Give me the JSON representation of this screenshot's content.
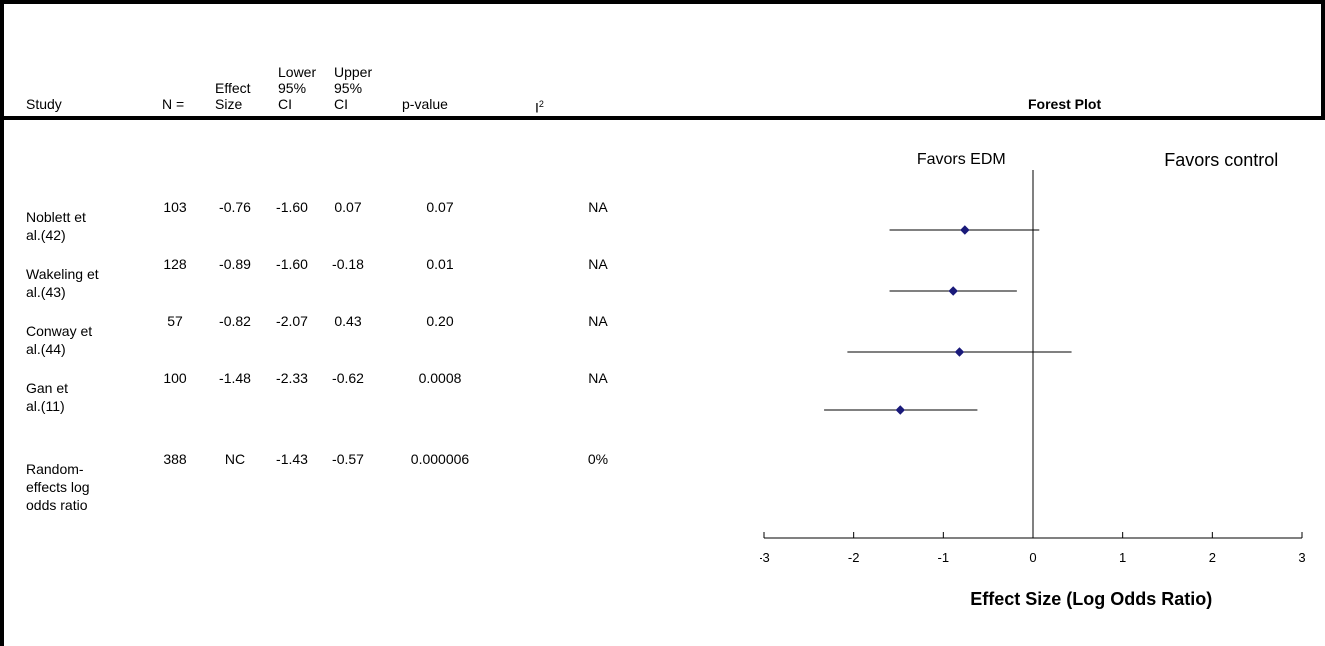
{
  "table": {
    "headers": {
      "study": "Study",
      "n": "N =",
      "effect_size": [
        "Effect",
        "Size"
      ],
      "lower_ci": [
        "Lower",
        "95%",
        "CI"
      ],
      "upper_ci": [
        "Upper",
        "95%",
        "CI"
      ],
      "p_value": "p-value",
      "i2": "I",
      "i2_sup": "2",
      "forest_plot": "Forest Plot"
    },
    "rows": [
      {
        "study": [
          "Noblett et",
          "al.(42)"
        ],
        "n": "103",
        "effect_size": "-0.76",
        "lower": "-1.60",
        "upper": "0.07",
        "p": "0.07",
        "i2": "NA"
      },
      {
        "study": [
          "Wakeling et",
          "al.(43)"
        ],
        "n": "128",
        "effect_size": "-0.89",
        "lower": "-1.60",
        "upper": "-0.18",
        "p": "0.01",
        "i2": "NA"
      },
      {
        "study": [
          "Conway et",
          "al.(44)"
        ],
        "n": "57",
        "effect_size": "-0.82",
        "lower": "-2.07",
        "upper": "0.43",
        "p": "0.20",
        "i2": "NA"
      },
      {
        "study": [
          "Gan et",
          "al.(11)"
        ],
        "n": "100",
        "effect_size": "-1.48",
        "lower": "-2.33",
        "upper": "-0.62",
        "p": "0.0008",
        "i2": "NA"
      },
      {
        "study": [
          "Random-",
          "effects log",
          "odds ratio"
        ],
        "n": "388",
        "effect_size": "NC",
        "lower": "-1.43",
        "upper": "-0.57",
        "p": "0.000006",
        "i2": "0%"
      }
    ]
  },
  "chart_data": {
    "type": "scatter",
    "title": "",
    "xlabel": "Effect Size (Log Odds Ratio)",
    "ylabel": "",
    "xlim": [
      -3,
      3
    ],
    "xticks": [
      "-3",
      "-2",
      "-1",
      "0",
      "1",
      "2",
      "3"
    ],
    "favors_left": "Favors EDM",
    "favors_right": "Favors control",
    "marker_color": "#1a1a7a",
    "points": [
      {
        "study": "Noblett et al.(42)",
        "estimate": -0.76,
        "lower": -1.6,
        "upper": 0.07
      },
      {
        "study": "Wakeling et al.(43)",
        "estimate": -0.89,
        "lower": -1.6,
        "upper": -0.18
      },
      {
        "study": "Conway et al.(44)",
        "estimate": -0.82,
        "lower": -2.07,
        "upper": 0.43
      },
      {
        "study": "Gan et al.(11)",
        "estimate": -1.48,
        "lower": -2.33,
        "upper": -0.62
      }
    ]
  }
}
